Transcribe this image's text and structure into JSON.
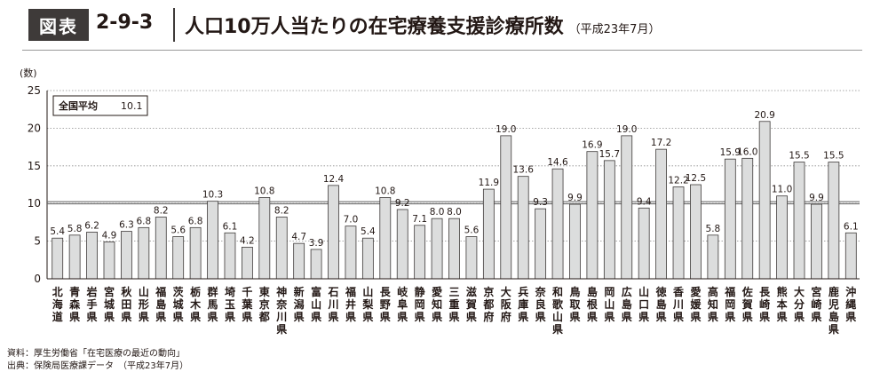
{
  "header": {
    "badge": "図表",
    "number": "2-9-3",
    "title": "人口10万人当たりの在宅療養支援診療所数",
    "subtitle": "（平成23年7月）"
  },
  "chart_data": {
    "type": "bar",
    "ylabel": "(数)",
    "ylim": [
      0,
      25
    ],
    "yticks": [
      0,
      5,
      10,
      15,
      20,
      25
    ],
    "grid": true,
    "average_label": "全国平均",
    "average_value": 10.1,
    "categories": [
      "北海道",
      "青森県",
      "岩手県",
      "宮城県",
      "秋田県",
      "山形県",
      "福島県",
      "茨城県",
      "栃木県",
      "群馬県",
      "埼玉県",
      "千葉県",
      "東京都",
      "神奈川県",
      "新潟県",
      "富山県",
      "石川県",
      "福井県",
      "山梨県",
      "長野県",
      "岐阜県",
      "静岡県",
      "愛知県",
      "三重県",
      "滋賀県",
      "京都府",
      "大阪府",
      "兵庫県",
      "奈良県",
      "和歌山県",
      "鳥取県",
      "島根県",
      "岡山県",
      "広島県",
      "山口県",
      "徳島県",
      "香川県",
      "愛媛県",
      "高知県",
      "福岡県",
      "佐賀県",
      "長崎県",
      "熊本県",
      "大分県",
      "宮崎県",
      "鹿児島県",
      "沖縄県"
    ],
    "values": [
      5.4,
      5.8,
      6.2,
      4.9,
      6.3,
      6.8,
      8.2,
      5.6,
      6.8,
      10.3,
      6.1,
      4.2,
      10.8,
      8.2,
      4.7,
      3.9,
      12.4,
      7.0,
      5.4,
      10.8,
      9.2,
      7.1,
      8.0,
      8.0,
      5.6,
      11.9,
      19.0,
      13.6,
      9.3,
      14.6,
      9.9,
      16.9,
      15.7,
      19.0,
      9.4,
      17.2,
      12.2,
      12.5,
      5.8,
      15.9,
      16.0,
      20.9,
      11.0,
      15.5,
      9.9,
      15.5,
      6.1
    ],
    "value_labels": [
      "5.4",
      "5.8",
      "6.2",
      "4.9",
      "6.3",
      "6.8",
      "8.2",
      "5.6",
      "6.8",
      "10.3",
      "6.1",
      "4.2",
      "10.8",
      "8.2",
      "4.7",
      "3.9",
      "12.4",
      "7.0",
      "5.4",
      "10.8",
      "9.2",
      "7.1",
      "8.0",
      "8.0",
      "5.6",
      "11.9",
      "19.0",
      "13.6",
      "9.3",
      "14.6",
      "9.9",
      "16.9",
      "15.7",
      "19.0",
      "9.4",
      "17.2",
      "12.2",
      "12.5",
      "5.8",
      "15.9",
      "16.0",
      "20.9",
      "11.0",
      "15.5",
      "9.9",
      "15.5",
      "6.1"
    ]
  },
  "footnotes": {
    "source": "資料：厚生労働省「在宅医療の最近の動向」",
    "origin": "出典：保険局医療課データ　（平成23年7月）"
  }
}
